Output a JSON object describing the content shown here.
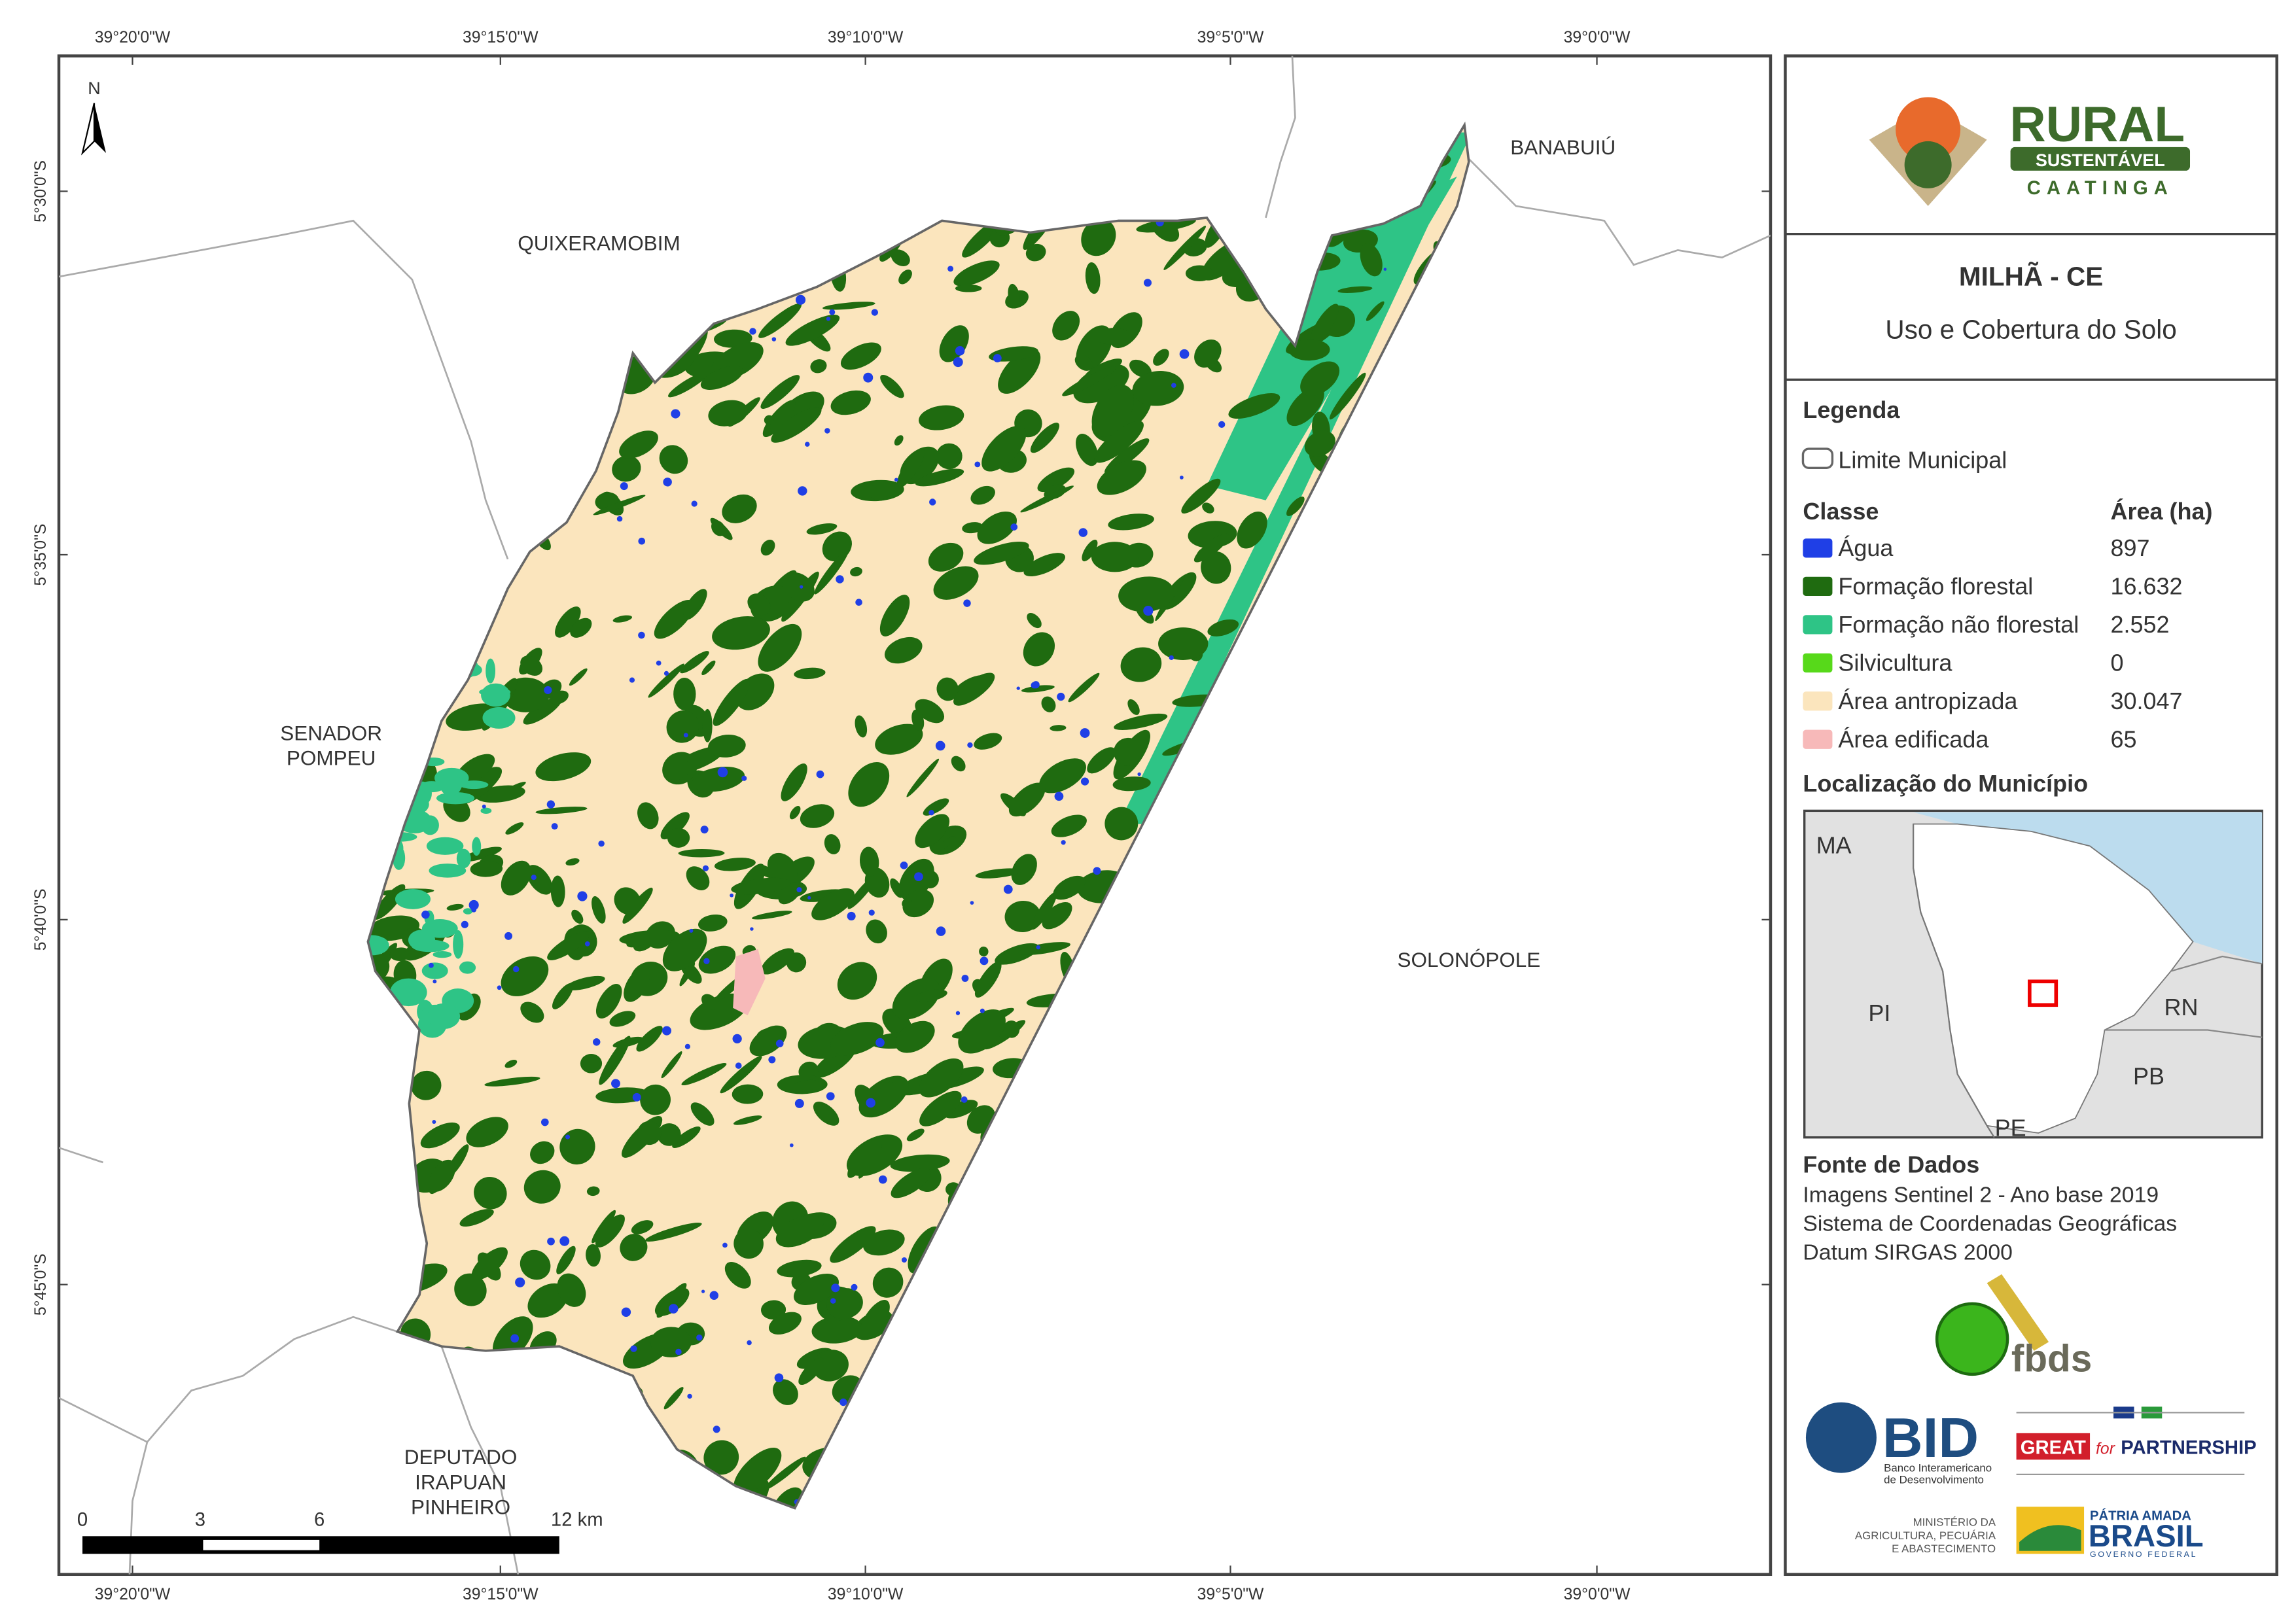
{
  "map": {
    "graticule": {
      "top": [
        "39°20'0\"W",
        "39°15'0\"W",
        "39°10'0\"W",
        "39°5'0\"W",
        "39°0'0\"W"
      ],
      "bottom": [
        "39°20'0\"W",
        "39°15'0\"W",
        "39°10'0\"W",
        "39°5'0\"W",
        "39°0'0\"W"
      ],
      "left": [
        "5°30'0\"S",
        "5°35'0\"S",
        "5°40'0\"S",
        "5°45'0\"S"
      ]
    },
    "north": "N",
    "places": [
      {
        "lines": [
          "QUIXERAMOBIM"
        ]
      },
      {
        "lines": [
          "BANABUIÚ"
        ]
      },
      {
        "lines": [
          "SENADOR",
          "POMPEU"
        ]
      },
      {
        "lines": [
          "SOLONÓPOLE"
        ]
      },
      {
        "lines": [
          "DEPUTADO",
          "IRAPUAN",
          "PINHEIRO"
        ]
      }
    ],
    "scale": [
      "0",
      "3",
      "6",
      "12 km"
    ]
  },
  "panel": {
    "logo": {
      "rural": "RURAL",
      "sustentavel": "SUSTENTÁVEL",
      "caatinga": "CAATINGA"
    },
    "title": "MILHÃ - CE",
    "subtitle": "Uso e Cobertura do Solo",
    "legend": {
      "title": "Legenda",
      "boundary": "Limite Municipal",
      "class_header": "Classe",
      "area_header": "Área (ha)",
      "classes": [
        {
          "name": "Água",
          "area": "897",
          "color": "#1f3fe6"
        },
        {
          "name": "Formação florestal",
          "area": "16.632",
          "color": "#1f6b10"
        },
        {
          "name": "Formação não florestal",
          "area": "2.552",
          "color": "#2ec486"
        },
        {
          "name": "Silvicultura",
          "area": "0",
          "color": "#57d91a"
        },
        {
          "name": "Área antropizada",
          "area": "30.047",
          "color": "#fbe5bd"
        },
        {
          "name": "Área edificada",
          "area": "65",
          "color": "#f7b9b9"
        }
      ]
    },
    "location": {
      "title": "Localização do Município",
      "states": [
        "MA",
        "PI",
        "RN",
        "PB",
        "PE"
      ]
    },
    "sources": {
      "title": "Fonte de Dados",
      "lines": [
        "Imagens Sentinel 2 - Ano base 2019",
        "Sistema de Coordenadas Geográficas",
        "Datum SIRGAS 2000"
      ]
    },
    "logos": {
      "fbds": "fbds",
      "bid": "BID",
      "bid_name": [
        "Banco Interamericano",
        "de Desenvolvimento"
      ],
      "great": "GREAT",
      "for": "for",
      "partnership": "PARTNERSHIP",
      "ministry": [
        "MINISTÉRIO DA",
        "AGRICULTURA, PECUÁRIA",
        "E ABASTECIMENTO"
      ],
      "patria": "PÁTRIA AMADA",
      "brasil": "BRASIL",
      "governo": "GOVERNO FEDERAL"
    }
  }
}
